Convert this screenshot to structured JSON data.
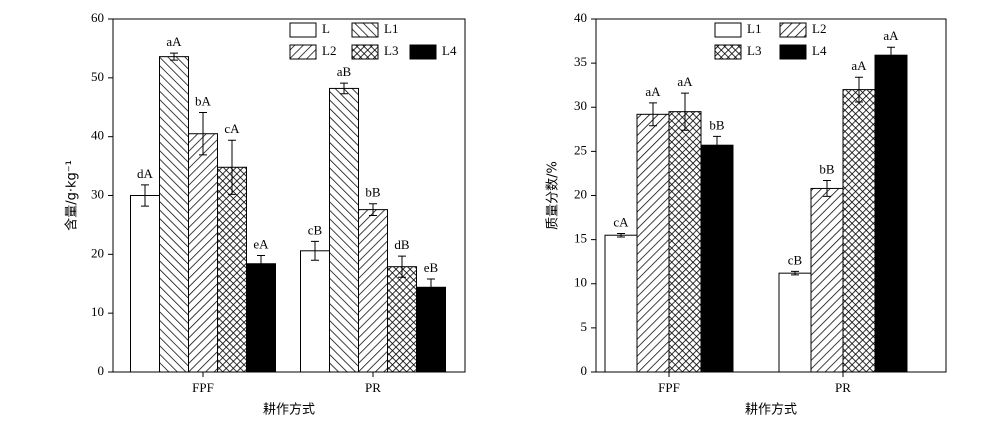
{
  "chart_data": [
    {
      "type": "bar",
      "ylabel": "含量/g·kg⁻¹",
      "xlabel": "耕作方式",
      "categories": [
        "FPF",
        "PR"
      ],
      "ylim": [
        0,
        60
      ],
      "yticks": [
        0,
        10,
        20,
        30,
        40,
        50,
        60
      ],
      "series": [
        {
          "name": "L",
          "hatch": "none",
          "color": "#ffffff",
          "values": [
            30,
            20.6
          ],
          "errors": [
            1.8,
            1.6
          ],
          "letters": [
            "dA",
            "cB"
          ]
        },
        {
          "name": "L1",
          "hatch": "backslash",
          "color": "#000000",
          "values": [
            53.6,
            48.2
          ],
          "errors": [
            0.6,
            0.9
          ],
          "letters": [
            "aA",
            "aB"
          ]
        },
        {
          "name": "L2",
          "hatch": "slash",
          "color": "#000000",
          "values": [
            40.5,
            27.6
          ],
          "errors": [
            3.6,
            1.0
          ],
          "letters": [
            "bA",
            "bB"
          ]
        },
        {
          "name": "L3",
          "hatch": "cross",
          "color": "#000000",
          "values": [
            34.8,
            17.9
          ],
          "errors": [
            4.6,
            1.8
          ],
          "letters": [
            "cA",
            "dB"
          ]
        },
        {
          "name": "L4",
          "hatch": "solid",
          "color": "#000000",
          "values": [
            18.4,
            14.4
          ],
          "errors": [
            1.4,
            1.4
          ],
          "letters": [
            "eA",
            "eB"
          ]
        }
      ]
    },
    {
      "type": "bar",
      "ylabel": "质量分数/%",
      "xlabel": "耕作方式",
      "categories": [
        "FPF",
        "PR"
      ],
      "ylim": [
        0,
        40
      ],
      "yticks": [
        0,
        5,
        10,
        15,
        20,
        25,
        30,
        35,
        40
      ],
      "series": [
        {
          "name": "L1",
          "hatch": "none",
          "color": "#ffffff",
          "values": [
            15.5,
            11.2
          ],
          "errors": [
            0.2,
            0.2
          ],
          "letters": [
            "cA",
            "cB"
          ]
        },
        {
          "name": "L2",
          "hatch": "slash",
          "color": "#000000",
          "values": [
            29.2,
            20.8
          ],
          "errors": [
            1.3,
            0.9
          ],
          "letters": [
            "aA",
            "bB"
          ]
        },
        {
          "name": "L3",
          "hatch": "cross",
          "color": "#000000",
          "values": [
            29.5,
            32.0
          ],
          "errors": [
            2.1,
            1.4
          ],
          "letters": [
            "aA",
            "aA"
          ]
        },
        {
          "name": "L4",
          "hatch": "solid",
          "color": "#000000",
          "values": [
            25.7,
            35.9
          ],
          "errors": [
            1.0,
            0.9
          ],
          "letters": [
            "bB",
            "aA"
          ]
        }
      ]
    }
  ]
}
